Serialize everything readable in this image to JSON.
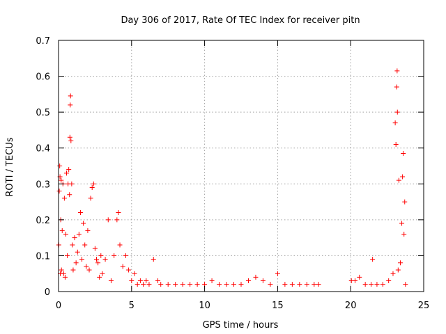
{
  "chart_data": {
    "type": "scatter",
    "title": "Day 306 of 2017, Rate Of TEC Index for receiver pitn",
    "xlabel": "GPS time / hours",
    "ylabel": "ROTI / TECUs",
    "xlim": [
      0,
      25
    ],
    "ylim": [
      0,
      0.7
    ],
    "xticks": [
      "0",
      "5",
      "10",
      "15",
      "20",
      "25"
    ],
    "yticks": [
      "0",
      "0.1",
      "0.2",
      "0.3",
      "0.4",
      "0.5",
      "0.6",
      "0.7"
    ],
    "grid": true,
    "marker": "plus",
    "color": "#ff0000",
    "series": [
      {
        "points": [
          [
            0.02,
            0.13
          ],
          [
            0.05,
            0.28
          ],
          [
            0.08,
            0.35
          ],
          [
            0.1,
            0.32
          ],
          [
            0.12,
            0.05
          ],
          [
            0.15,
            0.2
          ],
          [
            0.18,
            0.31
          ],
          [
            0.2,
            0.06
          ],
          [
            0.25,
            0.17
          ],
          [
            0.3,
            0.3
          ],
          [
            0.35,
            0.05
          ],
          [
            0.4,
            0.26
          ],
          [
            0.45,
            0.04
          ],
          [
            0.5,
            0.16
          ],
          [
            0.55,
            0.33
          ],
          [
            0.6,
            0.1
          ],
          [
            0.65,
            0.3
          ],
          [
            0.7,
            0.34
          ],
          [
            0.75,
            0.27
          ],
          [
            0.78,
            0.43
          ],
          [
            0.8,
            0.52
          ],
          [
            0.82,
            0.545
          ],
          [
            0.85,
            0.42
          ],
          [
            0.9,
            0.3
          ],
          [
            0.95,
            0.13
          ],
          [
            1.0,
            0.06
          ],
          [
            1.1,
            0.15
          ],
          [
            1.2,
            0.08
          ],
          [
            1.3,
            0.11
          ],
          [
            1.4,
            0.16
          ],
          [
            1.5,
            0.22
          ],
          [
            1.6,
            0.09
          ],
          [
            1.7,
            0.19
          ],
          [
            1.8,
            0.13
          ],
          [
            1.9,
            0.07
          ],
          [
            2.0,
            0.17
          ],
          [
            2.1,
            0.06
          ],
          [
            2.2,
            0.26
          ],
          [
            2.3,
            0.29
          ],
          [
            2.4,
            0.3
          ],
          [
            2.5,
            0.12
          ],
          [
            2.6,
            0.09
          ],
          [
            2.7,
            0.08
          ],
          [
            2.8,
            0.04
          ],
          [
            2.9,
            0.1
          ],
          [
            3.0,
            0.05
          ],
          [
            3.2,
            0.09
          ],
          [
            3.4,
            0.2
          ],
          [
            3.6,
            0.03
          ],
          [
            3.8,
            0.1
          ],
          [
            4.0,
            0.2
          ],
          [
            4.1,
            0.22
          ],
          [
            4.2,
            0.13
          ],
          [
            4.4,
            0.07
          ],
          [
            4.6,
            0.1
          ],
          [
            4.8,
            0.06
          ],
          [
            5.0,
            0.03
          ],
          [
            5.2,
            0.05
          ],
          [
            5.4,
            0.02
          ],
          [
            5.6,
            0.03
          ],
          [
            5.8,
            0.02
          ],
          [
            6.0,
            0.03
          ],
          [
            6.2,
            0.02
          ],
          [
            6.5,
            0.09
          ],
          [
            6.8,
            0.03
          ],
          [
            7.0,
            0.02
          ],
          [
            7.5,
            0.02
          ],
          [
            8.0,
            0.02
          ],
          [
            8.5,
            0.02
          ],
          [
            9.0,
            0.02
          ],
          [
            9.5,
            0.02
          ],
          [
            10.0,
            0.02
          ],
          [
            10.5,
            0.03
          ],
          [
            11.0,
            0.02
          ],
          [
            11.5,
            0.02
          ],
          [
            12.0,
            0.02
          ],
          [
            12.5,
            0.02
          ],
          [
            13.0,
            0.03
          ],
          [
            13.5,
            0.04
          ],
          [
            14.0,
            0.03
          ],
          [
            14.5,
            0.02
          ],
          [
            15.0,
            0.05
          ],
          [
            15.5,
            0.02
          ],
          [
            16.0,
            0.02
          ],
          [
            16.5,
            0.02
          ],
          [
            17.0,
            0.02
          ],
          [
            17.5,
            0.02
          ],
          [
            17.8,
            0.02
          ],
          [
            20.05,
            0.03
          ],
          [
            20.3,
            0.03
          ],
          [
            20.6,
            0.04
          ],
          [
            21.0,
            0.02
          ],
          [
            21.4,
            0.02
          ],
          [
            21.5,
            0.09
          ],
          [
            21.8,
            0.02
          ],
          [
            22.2,
            0.02
          ],
          [
            22.6,
            0.03
          ],
          [
            22.9,
            0.05
          ],
          [
            23.05,
            0.47
          ],
          [
            23.1,
            0.41
          ],
          [
            23.15,
            0.57
          ],
          [
            23.18,
            0.615
          ],
          [
            23.2,
            0.5
          ],
          [
            23.25,
            0.06
          ],
          [
            23.3,
            0.31
          ],
          [
            23.4,
            0.08
          ],
          [
            23.5,
            0.19
          ],
          [
            23.55,
            0.32
          ],
          [
            23.6,
            0.385
          ],
          [
            23.65,
            0.16
          ],
          [
            23.7,
            0.25
          ],
          [
            23.75,
            0.02
          ]
        ]
      }
    ]
  }
}
